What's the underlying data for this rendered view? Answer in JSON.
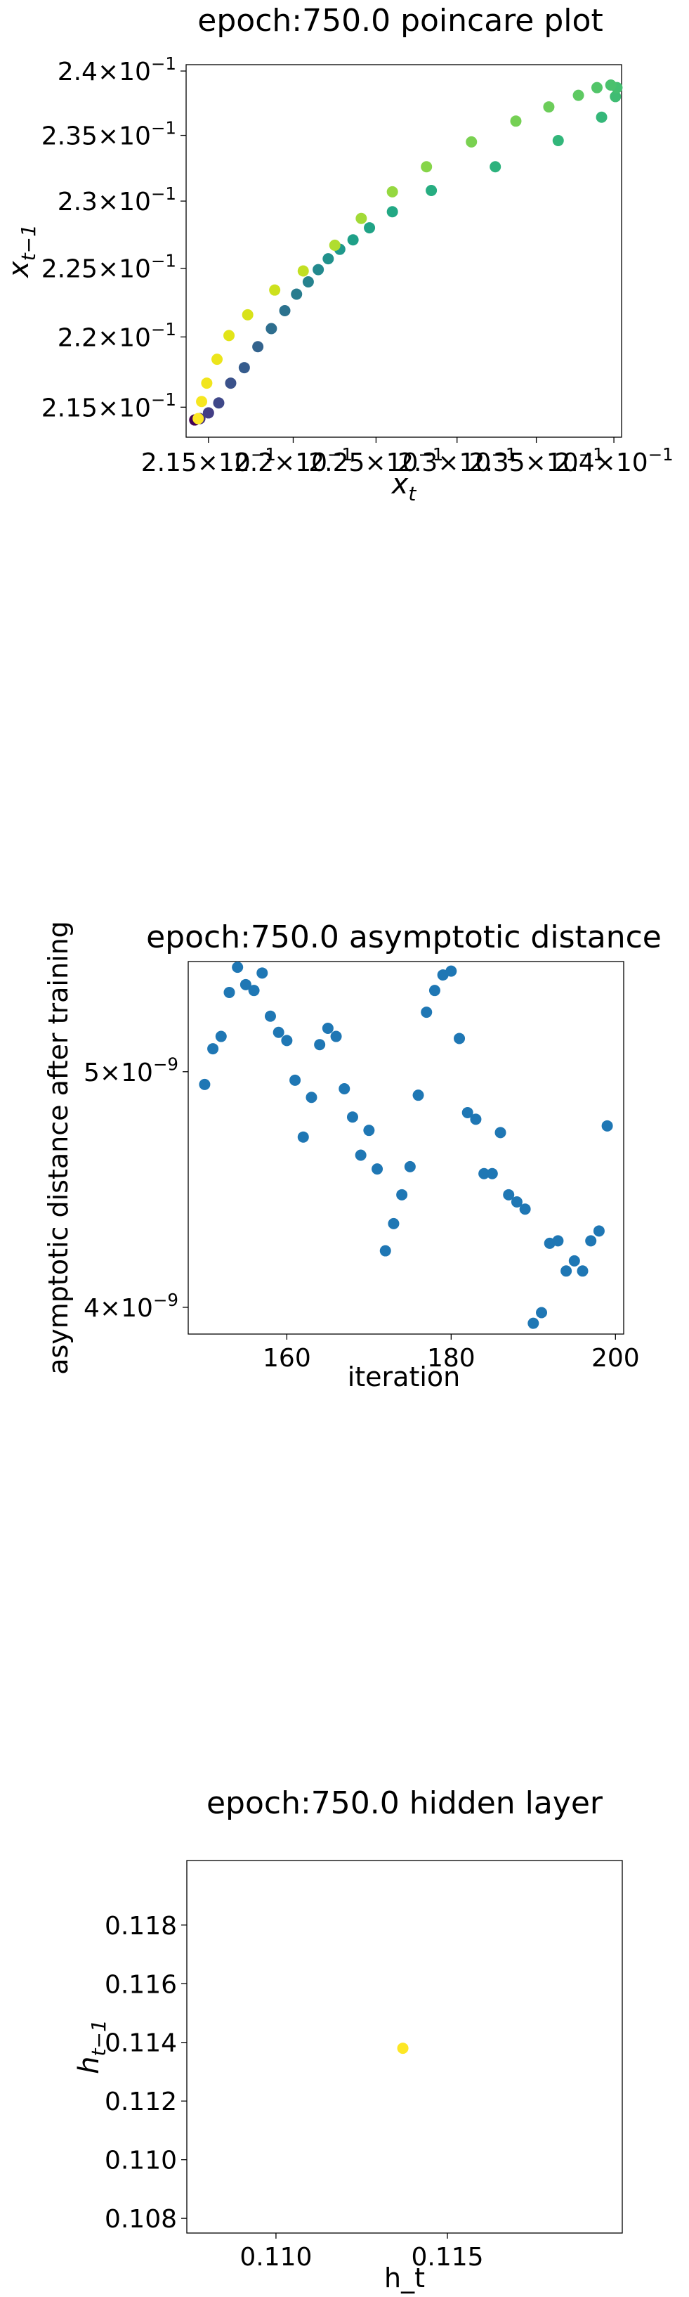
{
  "chart_data": [
    {
      "type": "scatter",
      "title": "epoch:750.0 poincare plot",
      "xlabel": "x_t",
      "ylabel": "x_{t-1}",
      "xscale": "log",
      "yscale": "log",
      "xlim": [
        0.2137,
        0.2405
      ],
      "ylim": [
        0.2129,
        0.2405
      ],
      "grid": false,
      "colormap": "viridis",
      "xticks": [
        {
          "value": 0.215,
          "mant": "2.15",
          "exp": "−1"
        },
        {
          "value": 0.22,
          "mant": "2.2",
          "exp": "−1"
        },
        {
          "value": 0.225,
          "mant": "2.25",
          "exp": "−1"
        },
        {
          "value": 0.23,
          "mant": "2.3",
          "exp": "−1"
        },
        {
          "value": 0.235,
          "mant": "2.35",
          "exp": "−1"
        },
        {
          "value": 0.24,
          "mant": "2.4",
          "exp": "−1"
        }
      ],
      "yticks": [
        {
          "value": 0.215,
          "mant": "2.15",
          "exp": "−1"
        },
        {
          "value": 0.22,
          "mant": "2.2",
          "exp": "−1"
        },
        {
          "value": 0.225,
          "mant": "2.25",
          "exp": "−1"
        },
        {
          "value": 0.23,
          "mant": "2.3",
          "exp": "−1"
        },
        {
          "value": 0.235,
          "mant": "2.35",
          "exp": "−1"
        },
        {
          "value": 0.24,
          "mant": "2.4",
          "exp": "−1"
        }
      ],
      "points": [
        {
          "x": 0.2142,
          "y": 0.2141,
          "color": "#440154"
        },
        {
          "x": 0.2145,
          "y": 0.2142,
          "color": "#46337e"
        },
        {
          "x": 0.215,
          "y": 0.2146,
          "color": "#433e85"
        },
        {
          "x": 0.2156,
          "y": 0.2153,
          "color": "#3f4889"
        },
        {
          "x": 0.2163,
          "y": 0.2167,
          "color": "#3b528b"
        },
        {
          "x": 0.2171,
          "y": 0.2178,
          "color": "#365c8d"
        },
        {
          "x": 0.2179,
          "y": 0.2193,
          "color": "#33638d"
        },
        {
          "x": 0.2187,
          "y": 0.2206,
          "color": "#2e6e8e"
        },
        {
          "x": 0.2195,
          "y": 0.2219,
          "color": "#2c728e"
        },
        {
          "x": 0.2202,
          "y": 0.2231,
          "color": "#287c8e"
        },
        {
          "x": 0.2209,
          "y": 0.224,
          "color": "#26828e"
        },
        {
          "x": 0.2215,
          "y": 0.2249,
          "color": "#23898e"
        },
        {
          "x": 0.2221,
          "y": 0.2257,
          "color": "#21918c"
        },
        {
          "x": 0.2228,
          "y": 0.2264,
          "color": "#1f988b"
        },
        {
          "x": 0.2236,
          "y": 0.2271,
          "color": "#1fa088"
        },
        {
          "x": 0.2246,
          "y": 0.228,
          "color": "#20a386"
        },
        {
          "x": 0.226,
          "y": 0.2292,
          "color": "#22a884"
        },
        {
          "x": 0.2284,
          "y": 0.2308,
          "color": "#27ad81"
        },
        {
          "x": 0.2324,
          "y": 0.2326,
          "color": "#2db27d"
        },
        {
          "x": 0.2364,
          "y": 0.2346,
          "color": "#32b67a"
        },
        {
          "x": 0.2392,
          "y": 0.2364,
          "color": "#35b779"
        },
        {
          "x": 0.2401,
          "y": 0.238,
          "color": "#3fbc73"
        },
        {
          "x": 0.2402,
          "y": 0.2387,
          "color": "#44bf70"
        },
        {
          "x": 0.2398,
          "y": 0.2389,
          "color": "#4ac16d"
        },
        {
          "x": 0.2389,
          "y": 0.2387,
          "color": "#52c569"
        },
        {
          "x": 0.2377,
          "y": 0.2381,
          "color": "#5ec962"
        },
        {
          "x": 0.2358,
          "y": 0.2372,
          "color": "#6ccd5a"
        },
        {
          "x": 0.2337,
          "y": 0.2361,
          "color": "#75d054"
        },
        {
          "x": 0.2309,
          "y": 0.2345,
          "color": "#7ad151"
        },
        {
          "x": 0.2281,
          "y": 0.2326,
          "color": "#86d549"
        },
        {
          "x": 0.226,
          "y": 0.2307,
          "color": "#95d840"
        },
        {
          "x": 0.2241,
          "y": 0.2287,
          "color": "#a2da37"
        },
        {
          "x": 0.2225,
          "y": 0.2267,
          "color": "#b0dd2f"
        },
        {
          "x": 0.2206,
          "y": 0.2248,
          "color": "#c2df23"
        },
        {
          "x": 0.2189,
          "y": 0.2234,
          "color": "#cde11d"
        },
        {
          "x": 0.2173,
          "y": 0.2216,
          "color": "#d8e219"
        },
        {
          "x": 0.2162,
          "y": 0.2201,
          "color": "#e2e418"
        },
        {
          "x": 0.2155,
          "y": 0.2184,
          "color": "#ece51b"
        },
        {
          "x": 0.2149,
          "y": 0.2167,
          "color": "#f1e51d"
        },
        {
          "x": 0.2146,
          "y": 0.2154,
          "color": "#f6e620"
        },
        {
          "x": 0.2144,
          "y": 0.2142,
          "color": "#fde725"
        }
      ]
    },
    {
      "type": "scatter",
      "title": "epoch:750.0 asymptotic distance",
      "xlabel": "iteration",
      "ylabel": "asymptotic distance after training",
      "yscale": "log",
      "xlim": [
        148,
        201
      ],
      "ylim": [
        3.9e-09,
        5.55e-09
      ],
      "grid": false,
      "color": "#1f77b4",
      "xticks": [
        {
          "value": 160,
          "label": "160"
        },
        {
          "value": 180,
          "label": "180"
        },
        {
          "value": 200,
          "label": "200"
        }
      ],
      "yticks": [
        {
          "value": 4e-09,
          "mant": "4",
          "exp": "−9"
        },
        {
          "value": 5e-09,
          "mant": "5",
          "exp": "−9"
        }
      ],
      "x": [
        150,
        151,
        152,
        153,
        154,
        155,
        156,
        157,
        158,
        159,
        160,
        161,
        162,
        163,
        164,
        165,
        166,
        167,
        168,
        169,
        170,
        171,
        172,
        173,
        174,
        175,
        176,
        177,
        178,
        179,
        180,
        181,
        182,
        183,
        184,
        185,
        186,
        187,
        188,
        189,
        190,
        191,
        192,
        193,
        194,
        195,
        196,
        197,
        198,
        199
      ],
      "y": [
        4.94e-09,
        5.11e-09,
        5.17e-09,
        5.39e-09,
        5.52e-09,
        5.43e-09,
        5.4e-09,
        5.49e-09,
        5.27e-09,
        5.19e-09,
        5.15e-09,
        4.96e-09,
        4.7e-09,
        4.88e-09,
        5.13e-09,
        5.21e-09,
        5.17e-09,
        4.92e-09,
        4.79e-09,
        4.62e-09,
        4.73e-09,
        4.56e-09,
        4.22e-09,
        4.33e-09,
        4.45e-09,
        4.57e-09,
        4.89e-09,
        5.29e-09,
        5.4e-09,
        5.48e-09,
        5.5e-09,
        5.16e-09,
        4.81e-09,
        4.78e-09,
        4.54e-09,
        4.54e-09,
        4.72e-09,
        4.45e-09,
        4.42e-09,
        4.39e-09,
        3.94e-09,
        3.98e-09,
        4.25e-09,
        4.26e-09,
        4.14e-09,
        4.18e-09,
        4.14e-09,
        4.26e-09,
        4.3e-09,
        4.75e-09
      ]
    },
    {
      "type": "scatter",
      "title": "epoch:750.0 hidden layer",
      "xlabel": "h_t",
      "ylabel": "h_{t-1}",
      "xlim": [
        0.1074,
        0.1201
      ],
      "ylim": [
        0.1075,
        0.1202
      ],
      "grid": false,
      "color": "#fde725",
      "xticks": [
        {
          "value": 0.11,
          "label": "0.110"
        },
        {
          "value": 0.115,
          "label": "0.115"
        }
      ],
      "yticks": [
        {
          "value": 0.108,
          "label": "0.108"
        },
        {
          "value": 0.11,
          "label": "0.110"
        },
        {
          "value": 0.112,
          "label": "0.112"
        },
        {
          "value": 0.114,
          "label": "0.114"
        },
        {
          "value": 0.116,
          "label": "0.116"
        },
        {
          "value": 0.118,
          "label": "0.118"
        }
      ],
      "points": [
        {
          "x": 0.1137,
          "y": 0.1138
        }
      ]
    }
  ]
}
